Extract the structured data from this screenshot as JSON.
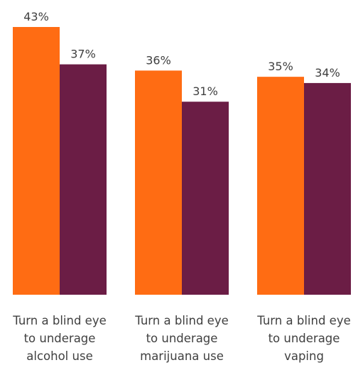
{
  "chart_data": {
    "type": "bar",
    "categories": [
      [
        "Turn a blind eye",
        "to underage",
        "alcohol use"
      ],
      [
        "Turn a blind eye",
        "to underage",
        "marijuana use"
      ],
      [
        "Turn a blind eye",
        "to underage",
        "vaping"
      ]
    ],
    "series": [
      {
        "values": [
          43,
          36,
          35
        ],
        "labels": [
          "43%",
          "36%",
          "35%"
        ],
        "color": "#FF6C13"
      },
      {
        "values": [
          37,
          31,
          34
        ],
        "labels": [
          "37%",
          "31%",
          "34%"
        ],
        "color": "#6B1D45"
      }
    ],
    "title": "",
    "xlabel": "",
    "ylabel": "",
    "ylim": [
      0,
      43
    ],
    "grid": false,
    "legend": "none"
  }
}
